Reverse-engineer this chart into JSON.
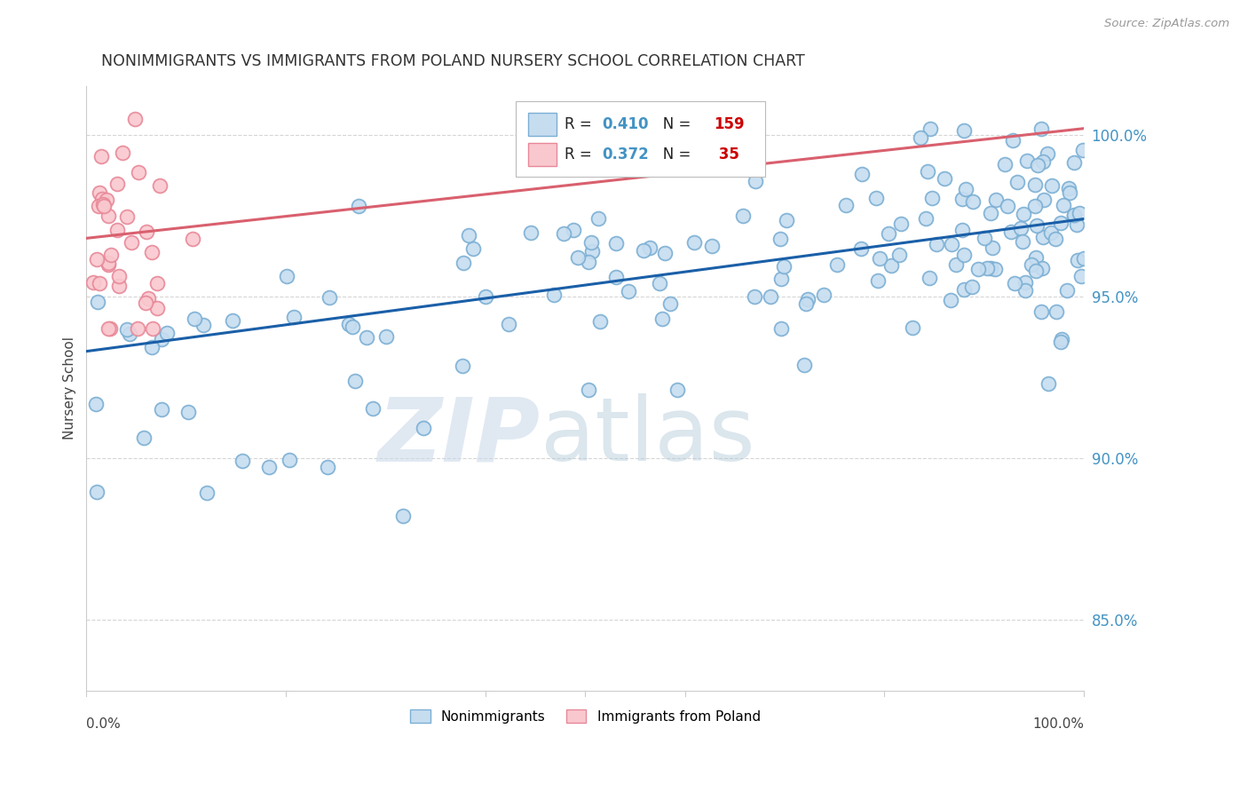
{
  "title": "NONIMMIGRANTS VS IMMIGRANTS FROM POLAND NURSERY SCHOOL CORRELATION CHART",
  "source": "Source: ZipAtlas.com",
  "ylabel": "Nursery School",
  "blue_R": "0.410",
  "blue_N": "159",
  "pink_R": "0.372",
  "pink_N": "35",
  "blue_scatter_face": "#c6ddf0",
  "blue_scatter_edge": "#7bafd4",
  "pink_scatter_face": "#f9c8cf",
  "pink_scatter_edge": "#e88898",
  "blue_line_color": "#1a5fa8",
  "pink_line_color": "#d9606e",
  "grid_color": "#cccccc",
  "title_color": "#333333",
  "right_tick_color": "#4393c3",
  "N_color": "#cc0000",
  "R_val_color": "#4393c3",
  "ylim_low": 0.828,
  "ylim_high": 1.015,
  "xlim_low": 0.0,
  "xlim_high": 1.0,
  "ytick_vals": [
    0.85,
    0.9,
    0.95,
    1.0
  ],
  "ytick_labels": [
    "85.0%",
    "90.0%",
    "95.0%",
    "100.0%"
  ],
  "blue_trend_x": [
    0.0,
    1.0
  ],
  "blue_trend_y": [
    0.933,
    0.974
  ],
  "pink_trend_x": [
    0.0,
    1.0
  ],
  "pink_trend_y": [
    0.968,
    1.002
  ],
  "watermark_zip_color": "#c8d8e8",
  "watermark_atlas_color": "#b0c8d8"
}
